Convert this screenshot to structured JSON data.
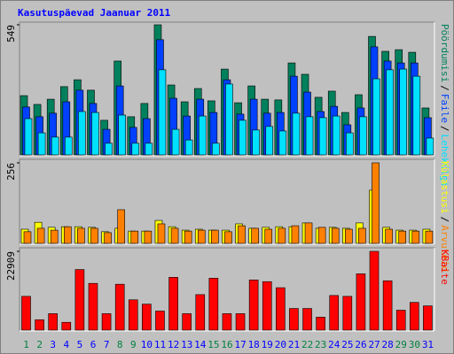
{
  "chart_data": {
    "type": "bar",
    "title": "Kasutuspäevad Jaanuar 2011",
    "categories": [
      "1",
      "2",
      "3",
      "4",
      "5",
      "6",
      "7",
      "8",
      "9",
      "10",
      "11",
      "12",
      "13",
      "14",
      "15",
      "16",
      "17",
      "18",
      "19",
      "20",
      "21",
      "22",
      "23",
      "24",
      "25",
      "26",
      "27",
      "28",
      "29",
      "30",
      "31"
    ],
    "category_colors": [
      "#008040",
      "#008040",
      "#0000ff",
      "#0000ff",
      "#0000ff",
      "#0000ff",
      "#0000ff",
      "#008040",
      "#008040",
      "#0000ff",
      "#0000ff",
      "#0000ff",
      "#0000ff",
      "#0000ff",
      "#008040",
      "#008040",
      "#0000ff",
      "#0000ff",
      "#0000ff",
      "#0000ff",
      "#0000ff",
      "#008040",
      "#008040",
      "#0000ff",
      "#0000ff",
      "#0000ff",
      "#0000ff",
      "#0000ff",
      "#008040",
      "#008040",
      "#0000ff"
    ],
    "legend_separator": "/",
    "panels": [
      {
        "ylim": [
          0,
          549
        ],
        "yticks": [
          549
        ],
        "series": [
          {
            "name": "Pöördumisi",
            "color": "#00805c",
            "values": [
              250,
              213,
              235,
              288,
              317,
              273,
              146,
              396,
              161,
              217,
              549,
              295,
              224,
              280,
              228,
              362,
              220,
              291,
              235,
              232,
              388,
              340,
              243,
              269,
              179,
              254,
              500,
              437,
              444,
              433,
              198
            ]
          },
          {
            "name": "Faile",
            "color": "#0040ff",
            "values": [
              202,
              161,
              176,
              224,
              273,
              217,
              108,
              291,
              116,
              153,
              486,
              239,
              164,
              235,
              179,
              317,
              172,
              235,
              176,
              179,
              332,
              265,
              183,
              205,
              127,
              198,
              456,
              396,
              388,
              388,
              157
            ]
          },
          {
            "name": "Lehekülgi",
            "color": "#00e0ff",
            "values": [
              153,
              93,
              75,
              75,
              183,
              179,
              49,
              168,
              49,
              49,
              359,
              108,
              63,
              164,
              49,
              299,
              146,
              105,
              120,
              101,
              176,
              161,
              157,
              164,
              93,
              161,
              321,
              359,
              362,
              332,
              71
            ]
          }
        ]
      },
      {
        "ylim": [
          0,
          256
        ],
        "yticks": [
          256
        ],
        "series": [
          {
            "name": "Külastusi",
            "color": "#ffff00",
            "values": [
              45,
              67,
              51,
              53,
              53,
              51,
              37,
              48,
              39,
              39,
              73,
              53,
              42,
              45,
              42,
              42,
              62,
              48,
              51,
              53,
              53,
              65,
              48,
              51,
              48,
              65,
              169,
              51,
              42,
              42,
              45
            ]
          },
          {
            "name": "Arvuteid",
            "color": "#ff8000",
            "values": [
              37,
              48,
              42,
              53,
              48,
              48,
              34,
              107,
              39,
              39,
              62,
              48,
              39,
              42,
              42,
              37,
              56,
              48,
              45,
              48,
              56,
              65,
              51,
              48,
              45,
              48,
              256,
              45,
              39,
              39,
              39
            ]
          }
        ]
      },
      {
        "ylim": [
          0,
          22909
        ],
        "yticks": [
          22909
        ],
        "series": [
          {
            "name": "KBaite",
            "color": "#ff0000",
            "values": [
              9817,
              3020,
              4782,
              2265,
              17620,
              13592,
              4782,
              13340,
              8810,
              7551,
              5537,
              15354,
              4782,
              10320,
              15102,
              4782,
              4782,
              14599,
              14095,
              12333,
              6293,
              6293,
              3776,
              10068,
              9817,
              16361,
              22909,
              14347,
              5789,
              8054,
              7048
            ]
          }
        ]
      }
    ]
  }
}
